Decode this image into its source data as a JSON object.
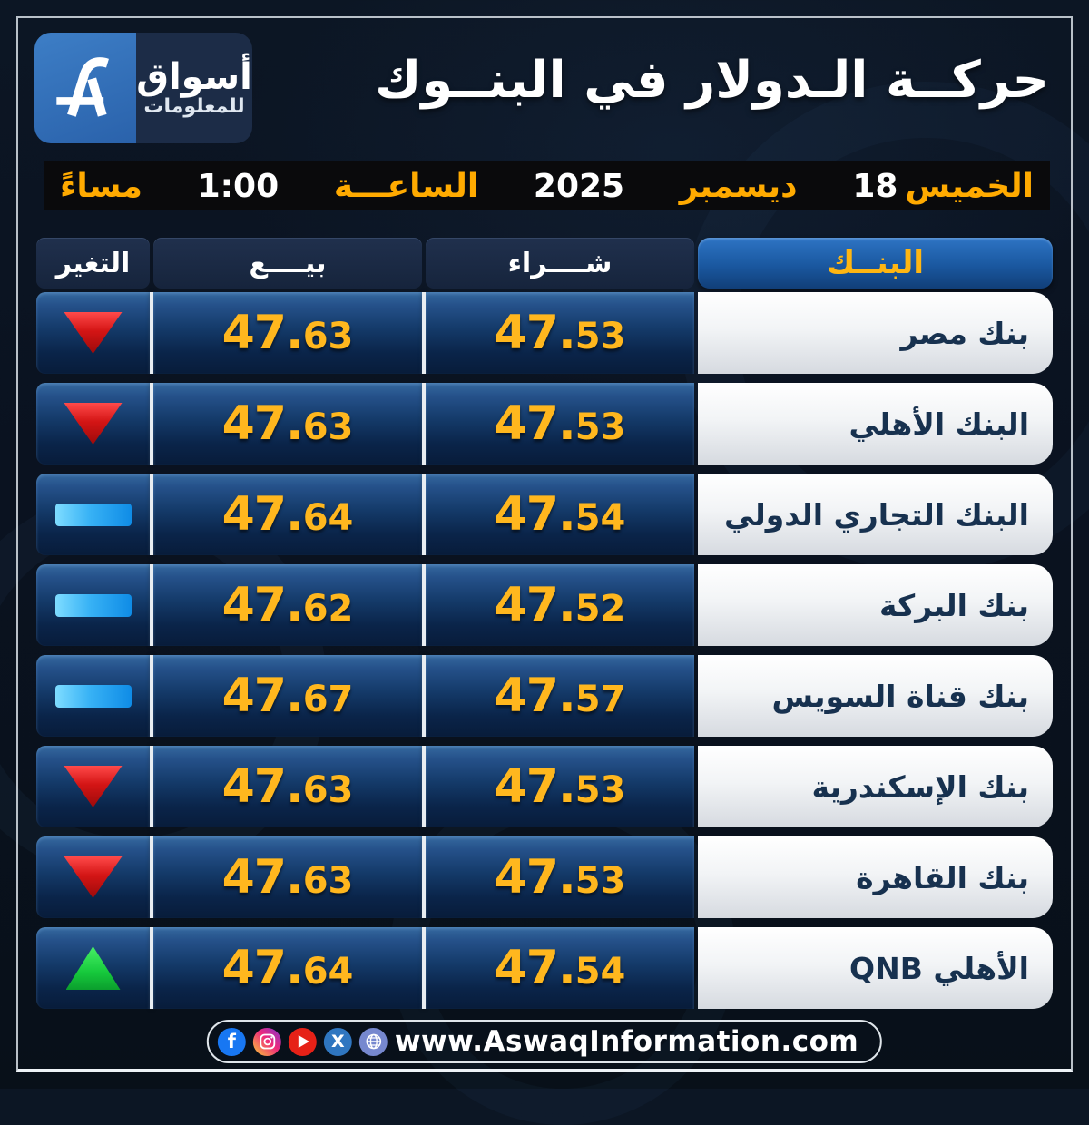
{
  "brand": {
    "logo_mark": "aswaq-monogram",
    "name_top": "أسواق",
    "name_bottom": "للمعلومات"
  },
  "title": "حركــة الـدولار في البنــوك",
  "datebar": {
    "day": "الخميس",
    "day_number": "18",
    "month": "ديسمبر",
    "year": "2025",
    "hour_label": "الساعـــة",
    "time": "1:00",
    "period": "مساءً"
  },
  "table": {
    "headers": {
      "change": "التغير",
      "sell": "بيــــع",
      "buy": "شــــراء",
      "bank": "البنــك"
    },
    "rows": [
      {
        "bank": "بنك مصر",
        "buy": "47.53",
        "sell": "47.63",
        "change": "down"
      },
      {
        "bank": "البنك الأهلي",
        "buy": "47.53",
        "sell": "47.63",
        "change": "down"
      },
      {
        "bank": "البنك التجاري الدولي",
        "buy": "47.54",
        "sell": "47.64",
        "change": "flat"
      },
      {
        "bank": "بنك البركة",
        "buy": "47.52",
        "sell": "47.62",
        "change": "flat"
      },
      {
        "bank": "بنك قناة السويس",
        "buy": "47.57",
        "sell": "47.67",
        "change": "flat"
      },
      {
        "bank": "بنك الإسكندرية",
        "buy": "47.53",
        "sell": "47.63",
        "change": "down"
      },
      {
        "bank": "بنك القاهرة",
        "buy": "47.53",
        "sell": "47.63",
        "change": "down"
      },
      {
        "bank": "QNB الأهلي",
        "buy": "47.54",
        "sell": "47.64",
        "change": "up"
      }
    ]
  },
  "footer": {
    "url": "www.AswaqInformation.com",
    "social_icons": [
      "facebook",
      "instagram",
      "youtube",
      "x-twitter",
      "globe"
    ]
  },
  "colors": {
    "gold_accent": "#ffb612",
    "date_gold": "#ffaa00",
    "cell_blue_top": "#35699f",
    "cell_blue_bottom": "#081c3a",
    "bank_header_blue": "#1a58a0",
    "down_red": "#d41515",
    "up_green": "#16c93c",
    "flat_cyan": "#38b2f5",
    "bank_cell_white": "#f2f4f6",
    "background_navy": "#0a1220"
  }
}
